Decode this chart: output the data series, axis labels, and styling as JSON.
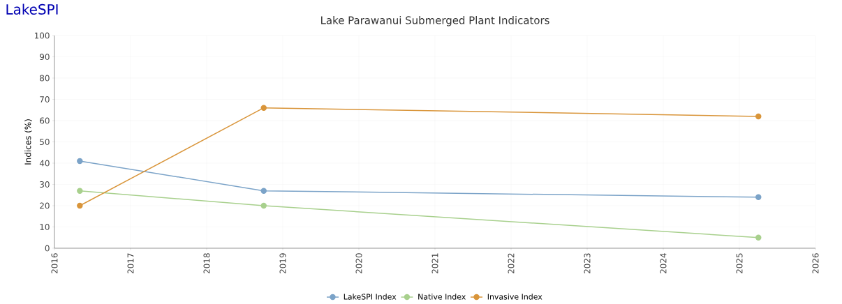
{
  "chart_data": {
    "type": "line",
    "title": "Lake Parawanui Submerged Plant Indicators",
    "annotations": [
      "LakeSPI"
    ],
    "ylabel": "Indices (%)",
    "x": [
      "2016-05",
      "2018-10",
      "2025-04"
    ],
    "series": [
      {
        "name": "LakeSPI Index",
        "color": "#7ba3c8",
        "values": [
          41,
          27,
          24
        ]
      },
      {
        "name": "Native Index",
        "color": "#a8d08d",
        "values": [
          27,
          20,
          5
        ]
      },
      {
        "name": "Invasive Index",
        "color": "#d9953a",
        "values": [
          20,
          66,
          62
        ]
      }
    ],
    "xlim": [
      "2016",
      "2026"
    ],
    "xticks": [
      "2016",
      "2017",
      "2018",
      "2019",
      "2020",
      "2021",
      "2022",
      "2023",
      "2024",
      "2025",
      "2026"
    ],
    "ylim": [
      0,
      100
    ],
    "yticks": [
      0,
      10,
      20,
      30,
      40,
      50,
      60,
      70,
      80,
      90,
      100
    ],
    "grid": true,
    "legend": "bottom",
    "marker": "circle",
    "line_style": "solid"
  }
}
